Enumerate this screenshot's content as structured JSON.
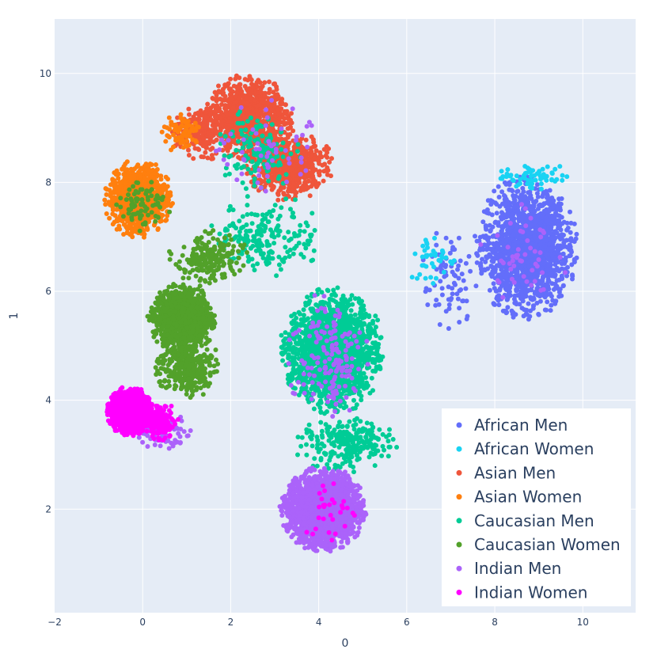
{
  "chart_data": {
    "type": "scatter",
    "xlabel": "0",
    "ylabel": "1",
    "xlim": [
      -2,
      11.2
    ],
    "ylim": [
      0.1,
      11.0
    ],
    "x_ticks": [
      -2,
      0,
      2,
      4,
      6,
      8,
      10
    ],
    "y_ticks": [
      2,
      4,
      6,
      8,
      10
    ],
    "x_tick_labels": [
      "−2",
      "0",
      "2",
      "4",
      "6",
      "8",
      "10"
    ],
    "y_tick_labels": [
      "2",
      "4",
      "6",
      "8",
      "10"
    ],
    "grid": true,
    "background": "#e5ecf6",
    "legend_position": "bottom-right",
    "series": [
      {
        "name": "African Men",
        "color": "#636efa",
        "clusters": [
          {
            "center": [
              8.7,
              6.8
            ],
            "spread": [
              0.9,
              1.0
            ],
            "points": 1600
          },
          {
            "center": [
              7.0,
              6.2
            ],
            "spread": [
              0.6,
              0.8
            ],
            "points": 80
          }
        ]
      },
      {
        "name": "African Women",
        "color": "#19d3f3",
        "clusters": [
          {
            "center": [
              8.9,
              8.1
            ],
            "spread": [
              0.8,
              0.2
            ],
            "points": 70
          },
          {
            "center": [
              6.6,
              6.6
            ],
            "spread": [
              0.5,
              0.4
            ],
            "points": 40
          }
        ]
      },
      {
        "name": "Asian Men",
        "color": "#ef553b",
        "clusters": [
          {
            "center": [
              2.4,
              9.2
            ],
            "spread": [
              0.8,
              0.6
            ],
            "points": 900
          },
          {
            "center": [
              3.3,
              8.3
            ],
            "spread": [
              0.8,
              0.5
            ],
            "points": 600
          },
          {
            "center": [
              1.3,
              8.9
            ],
            "spread": [
              0.5,
              0.4
            ],
            "points": 200
          }
        ]
      },
      {
        "name": "Asian Women",
        "color": "#ff7f0e",
        "clusters": [
          {
            "center": [
              -0.1,
              7.7
            ],
            "spread": [
              0.6,
              0.55
            ],
            "points": 900
          },
          {
            "center": [
              0.9,
              8.9
            ],
            "spread": [
              0.35,
              0.3
            ],
            "points": 80
          }
        ]
      },
      {
        "name": "Caucasian Men",
        "color": "#00cc96",
        "clusters": [
          {
            "center": [
              4.3,
              4.9
            ],
            "spread": [
              0.9,
              0.9
            ],
            "points": 1700
          },
          {
            "center": [
              2.8,
              7.0
            ],
            "spread": [
              1.0,
              0.6
            ],
            "points": 200
          },
          {
            "center": [
              4.6,
              3.2
            ],
            "spread": [
              0.9,
              0.4
            ],
            "points": 250
          },
          {
            "center": [
              2.6,
              8.6
            ],
            "spread": [
              0.8,
              0.6
            ],
            "points": 140
          }
        ]
      },
      {
        "name": "Caucasian Women",
        "color": "#52a12a",
        "clusters": [
          {
            "center": [
              0.9,
              5.5
            ],
            "spread": [
              0.6,
              0.5
            ],
            "points": 1000
          },
          {
            "center": [
              1.0,
              4.6
            ],
            "spread": [
              0.6,
              0.45
            ],
            "points": 300
          },
          {
            "center": [
              1.5,
              6.6
            ],
            "spread": [
              0.7,
              0.4
            ],
            "points": 200
          },
          {
            "center": [
              0.0,
              7.6
            ],
            "spread": [
              0.5,
              0.4
            ],
            "points": 80
          }
        ]
      },
      {
        "name": "Indian Men",
        "color": "#ab63fa",
        "clusters": [
          {
            "center": [
              4.1,
              2.0
            ],
            "spread": [
              0.75,
              0.6
            ],
            "points": 2000
          },
          {
            "center": [
              4.2,
              4.8
            ],
            "spread": [
              0.8,
              0.9
            ],
            "points": 150
          },
          {
            "center": [
              0.5,
              3.4
            ],
            "spread": [
              0.5,
              0.3
            ],
            "points": 80
          },
          {
            "center": [
              2.8,
              8.6
            ],
            "spread": [
              0.9,
              0.7
            ],
            "points": 60
          },
          {
            "center": [
              8.7,
              6.6
            ],
            "spread": [
              0.8,
              0.8
            ],
            "points": 50
          }
        ]
      },
      {
        "name": "Indian Women",
        "color": "#ff00ff",
        "clusters": [
          {
            "center": [
              -0.3,
              3.8
            ],
            "spread": [
              0.4,
              0.35
            ],
            "points": 1100
          },
          {
            "center": [
              0.4,
              3.6
            ],
            "spread": [
              0.35,
              0.3
            ],
            "points": 150
          },
          {
            "center": [
              4.3,
              2.0
            ],
            "spread": [
              0.6,
              0.5
            ],
            "points": 30
          }
        ]
      }
    ]
  }
}
